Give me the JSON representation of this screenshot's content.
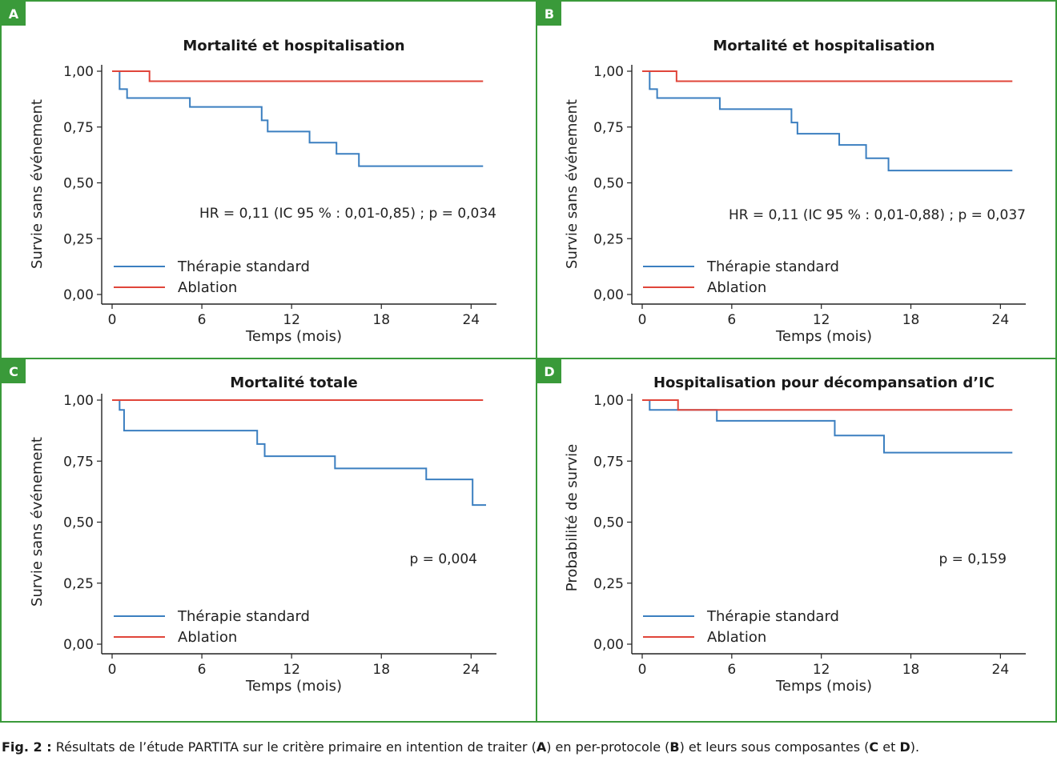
{
  "caption": {
    "label": "Fig. 2 :",
    "text": " Résultats de l’étude PARTITA sur le critère primaire en intention de traiter (",
    "a": "A",
    "t2": ") en per-protocole (",
    "b": "B",
    "t3": ") et leurs sous composantes (",
    "c": "C",
    "t4": " et ",
    "d": "D",
    "t5": ")."
  },
  "colors": {
    "standard": "#3b7fc0",
    "ablation": "#e0453a",
    "border": "#3a9a3a"
  },
  "chart_data": [
    {
      "letter": "A",
      "type": "line",
      "step": true,
      "title": "Mortalité et hospitalisation",
      "xlabel": "Temps (mois)",
      "ylabel": "Survie sans événement",
      "xlim": [
        0,
        25
      ],
      "ylim": [
        0,
        1
      ],
      "xticks": [
        0,
        6,
        12,
        18,
        24
      ],
      "yticks": [
        "0,00",
        "0,25",
        "0,50",
        "0,75",
        "1,00"
      ],
      "annotation": "HR = 0,11 (IC 95 % : 0,01-0,85) ; p = 0,034",
      "legend": [
        "Thérapie standard",
        "Ablation"
      ],
      "series": [
        {
          "name": "Thérapie standard",
          "x": [
            0,
            0.5,
            1,
            5.2,
            10,
            10.4,
            13.2,
            15,
            16.5,
            24.8
          ],
          "y": [
            1,
            0.92,
            0.88,
            0.84,
            0.78,
            0.73,
            0.68,
            0.63,
            0.575,
            0.575
          ]
        },
        {
          "name": "Ablation",
          "x": [
            0,
            2.5,
            24.8
          ],
          "y": [
            1,
            0.955,
            0.955
          ]
        }
      ]
    },
    {
      "letter": "B",
      "type": "line",
      "step": true,
      "title": "Mortalité et hospitalisation",
      "xlabel": "Temps (mois)",
      "ylabel": "Survie sans événement",
      "xlim": [
        0,
        25
      ],
      "ylim": [
        0,
        1
      ],
      "xticks": [
        0,
        6,
        12,
        18,
        24
      ],
      "yticks": [
        "0,00",
        "0,25",
        "0,50",
        "0,75",
        "1,00"
      ],
      "annotation": "HR = 0,11 (IC 95 % : 0,01-0,88) ; p = 0,037",
      "legend": [
        "Thérapie standard",
        "Ablation"
      ],
      "series": [
        {
          "name": "Thérapie standard",
          "x": [
            0,
            0.5,
            1,
            5.2,
            10,
            10.4,
            13.2,
            15,
            16.5,
            24.8
          ],
          "y": [
            1,
            0.92,
            0.88,
            0.83,
            0.77,
            0.72,
            0.67,
            0.61,
            0.555,
            0.555
          ]
        },
        {
          "name": "Ablation",
          "x": [
            0,
            2.3,
            24.8
          ],
          "y": [
            1,
            0.955,
            0.955
          ]
        }
      ]
    },
    {
      "letter": "C",
      "type": "line",
      "step": true,
      "title": "Mortalité totale",
      "xlabel": "Temps (mois)",
      "ylabel": "Survie sans événement",
      "xlim": [
        0,
        25
      ],
      "ylim": [
        0,
        1
      ],
      "xticks": [
        0,
        6,
        12,
        18,
        24
      ],
      "yticks": [
        "0,00",
        "0,25",
        "0,50",
        "0,75",
        "1,00"
      ],
      "annotation": "p = 0,004",
      "legend": [
        "Thérapie standard",
        "Ablation"
      ],
      "series": [
        {
          "name": "Thérapie standard",
          "x": [
            0,
            0.5,
            0.8,
            9.7,
            10.2,
            14.9,
            21,
            24.1,
            25
          ],
          "y": [
            1,
            0.96,
            0.875,
            0.82,
            0.77,
            0.72,
            0.675,
            0.57,
            0.57
          ]
        },
        {
          "name": "Ablation",
          "x": [
            0,
            24.8
          ],
          "y": [
            1,
            1
          ]
        }
      ]
    },
    {
      "letter": "D",
      "type": "line",
      "step": true,
      "title": "Hospitalisation pour décompansation d’IC",
      "xlabel": "Temps (mois)",
      "ylabel": "Probabilité de survie",
      "xlim": [
        0,
        25
      ],
      "ylim": [
        0,
        1
      ],
      "xticks": [
        0,
        6,
        12,
        18,
        24
      ],
      "yticks": [
        "0,00",
        "0,25",
        "0,50",
        "0,75",
        "1,00"
      ],
      "annotation": "p = 0,159",
      "legend": [
        "Thérapie standard",
        "Ablation"
      ],
      "series": [
        {
          "name": "Thérapie standard",
          "x": [
            0,
            0.5,
            5,
            12.9,
            16.2,
            24.8
          ],
          "y": [
            1,
            0.96,
            0.915,
            0.855,
            0.785,
            0.785
          ]
        },
        {
          "name": "Ablation",
          "x": [
            0,
            2.4,
            24.8
          ],
          "y": [
            1,
            0.96,
            0.96
          ]
        }
      ]
    }
  ]
}
